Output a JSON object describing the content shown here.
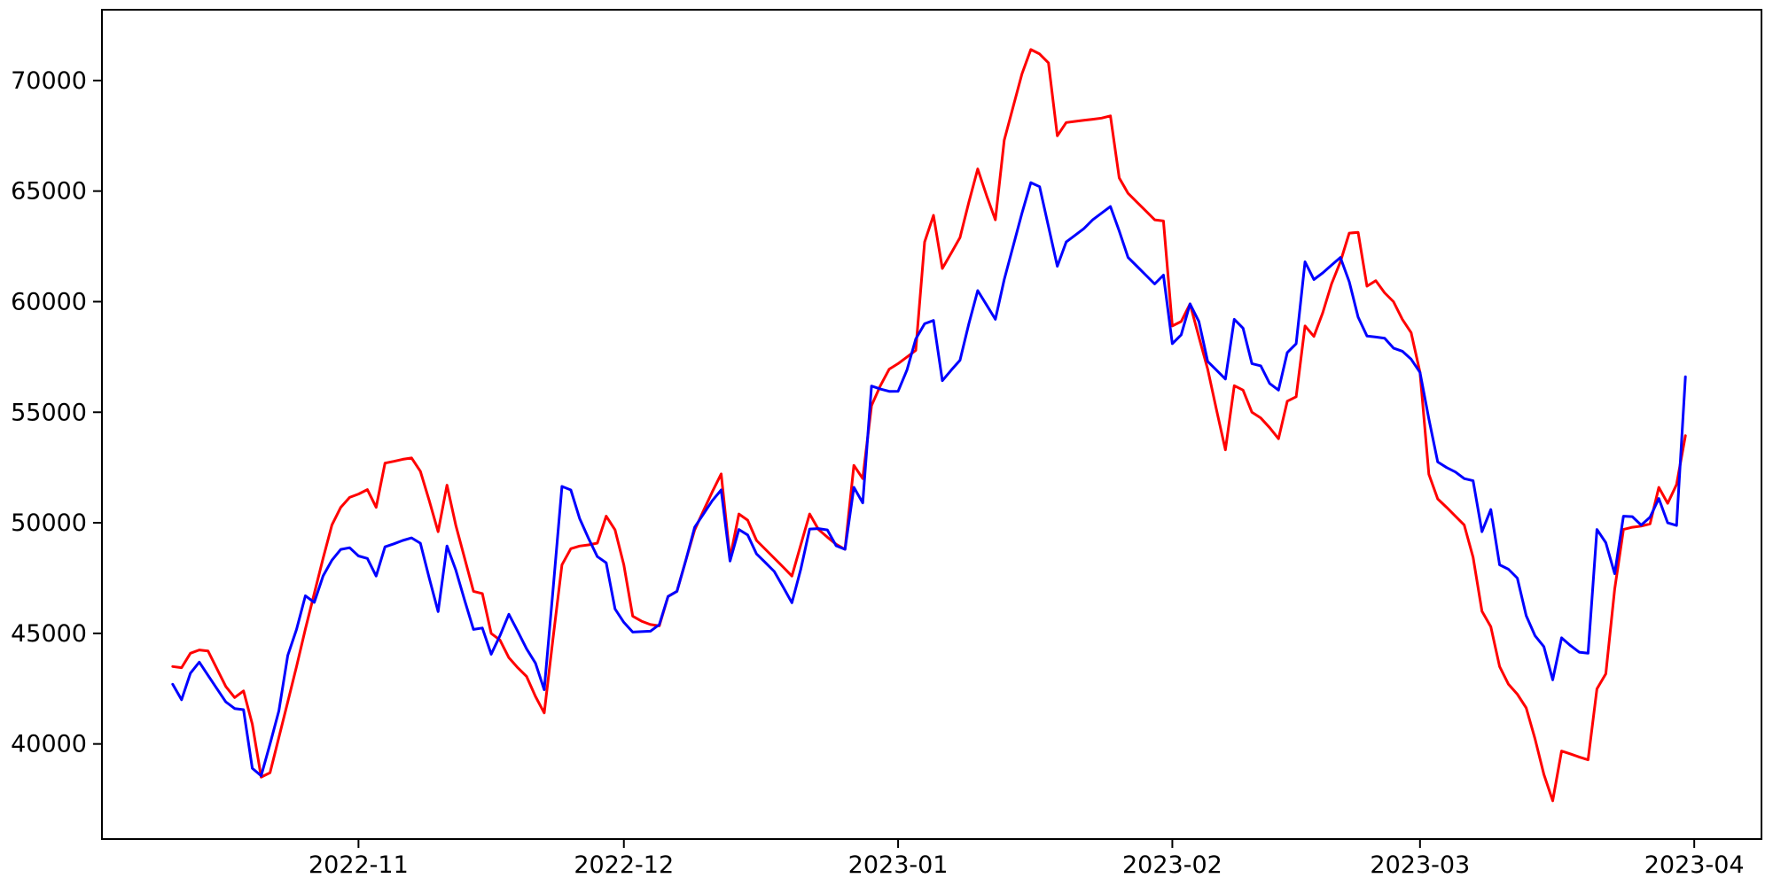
{
  "chart_data": {
    "type": "line",
    "title": "",
    "xlabel": "",
    "ylabel": "",
    "legend": false,
    "grid": false,
    "background_color": "#ffffff",
    "spine_color": "#000000",
    "tick_color": "#000000",
    "x_axis": {
      "start_date": "2022-10-11",
      "end_date": "2023-03-31",
      "frequency": "daily",
      "tick_labels": [
        "2022-11",
        "2022-12",
        "2023-01",
        "2023-02",
        "2023-03",
        "2023-04"
      ],
      "tick_day_indices": [
        21,
        51,
        82,
        113,
        141,
        172
      ],
      "xlim_days": [
        -8.0,
        179.6
      ]
    },
    "y_axis": {
      "tick_labels": [
        "40000",
        "45000",
        "50000",
        "55000",
        "60000",
        "65000",
        "70000"
      ],
      "tick_values": [
        40000,
        45000,
        50000,
        55000,
        60000,
        65000,
        70000
      ],
      "ylim": [
        35700,
        73200
      ]
    },
    "series": [
      {
        "name": "red-series",
        "color": "#ff0000",
        "line_width": 3,
        "values": [
          43500,
          43450,
          44100,
          44250,
          44200,
          43400,
          42600,
          42100,
          42400,
          40900,
          38500,
          38700,
          40300,
          41900,
          43500,
          45200,
          46800,
          48400,
          49900,
          50700,
          51150,
          51300,
          51500,
          50700,
          52700,
          52780,
          52870,
          52930,
          52330,
          51000,
          49600,
          51700,
          49900,
          48400,
          46900,
          46800,
          45000,
          44700,
          43900,
          43450,
          43050,
          42150,
          41400,
          44800,
          48100,
          48830,
          48950,
          49000,
          49080,
          50300,
          49680,
          48100,
          45780,
          45550,
          45400,
          45340,
          46670,
          46900,
          48300,
          49680,
          50550,
          51400,
          52210,
          48400,
          50400,
          50120,
          49200,
          48800,
          48400,
          48000,
          47590,
          49000,
          50400,
          49700,
          49350,
          49030,
          48800,
          52600,
          52000,
          55300,
          56200,
          56950,
          57200,
          57500,
          57800,
          62700,
          63900,
          61500,
          62200,
          62900,
          64500,
          66000,
          64800,
          63700,
          67300,
          68800,
          70300,
          71400,
          71200,
          70800,
          67500,
          68100,
          68150,
          68200,
          68250,
          68300,
          68400,
          65600,
          64900,
          64500,
          64100,
          63700,
          63650,
          58900,
          59100,
          59900,
          58400,
          56950,
          55100,
          53300,
          56200,
          56000,
          55000,
          54740,
          54300,
          53800,
          55500,
          55700,
          58900,
          58430,
          59500,
          60800,
          61800,
          63100,
          63130,
          60700,
          60950,
          60400,
          60000,
          59200,
          58600,
          56800,
          52200,
          51080,
          50700,
          50300,
          49900,
          48440,
          46000,
          45300,
          43500,
          42700,
          42250,
          41630,
          40240,
          38630,
          37430,
          39680,
          39550,
          39410,
          39280,
          42490,
          43170,
          47000,
          49700,
          49800,
          49850,
          49950,
          51600,
          50880,
          51730,
          53940
        ]
      },
      {
        "name": "blue-series",
        "color": "#0000ff",
        "line_width": 3,
        "values": [
          42700,
          42000,
          43200,
          43700,
          43100,
          42500,
          41900,
          41600,
          41550,
          38900,
          38560,
          40000,
          41500,
          44000,
          45180,
          46700,
          46400,
          47600,
          48310,
          48795,
          48875,
          48500,
          48390,
          47590,
          48915,
          49050,
          49200,
          49317,
          49076,
          47500,
          45984,
          48955,
          47871,
          46500,
          45181,
          45242,
          44056,
          44900,
          45863,
          45100,
          44300,
          43655,
          42450,
          47000,
          51646,
          51485,
          50200,
          49300,
          48473,
          48192,
          46105,
          45500,
          45060,
          45080,
          45100,
          45400,
          46670,
          46900,
          48300,
          49800,
          50400,
          51000,
          51486,
          48273,
          49700,
          49450,
          48594,
          48200,
          47800,
          47100,
          46385,
          47900,
          49718,
          49740,
          49678,
          48960,
          48800,
          51606,
          50900,
          56186,
          56050,
          55945,
          55950,
          56909,
          58313,
          59000,
          59150,
          56426,
          56900,
          57350,
          59000,
          60500,
          59850,
          59200,
          61000,
          62500,
          64000,
          65382,
          65200,
          63400,
          61600,
          62700,
          63000,
          63300,
          63700,
          64000,
          64300,
          63200,
          62000,
          61600,
          61200,
          60800,
          61200,
          58100,
          58500,
          59900,
          59100,
          57300,
          56900,
          56500,
          59200,
          58800,
          57200,
          57100,
          56300,
          56000,
          57700,
          58100,
          61800,
          61000,
          61300,
          61650,
          62000,
          60900,
          59300,
          58450,
          58400,
          58350,
          57900,
          57760,
          57400,
          56800,
          54700,
          52750,
          52500,
          52300,
          52000,
          51900,
          49600,
          50600,
          48100,
          47900,
          47500,
          45800,
          44900,
          44400,
          42900,
          44800,
          44450,
          44150,
          44100,
          49700,
          49100,
          47700,
          50300,
          50280,
          49900,
          50250,
          51100,
          50000,
          49880,
          56600
        ]
      }
    ]
  }
}
